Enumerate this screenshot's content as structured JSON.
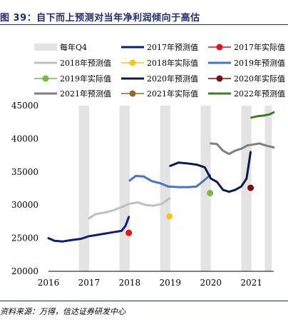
{
  "header": {
    "title": "图 39：自下而上预测对当年净利润倾向于高估"
  },
  "footer": {
    "source": "资料来源：万得，信达证券研发中心"
  },
  "chart_data": {
    "type": "line",
    "ylim": [
      20000,
      45000
    ],
    "yticks": [
      20000,
      25000,
      30000,
      35000,
      40000,
      45000
    ],
    "xlim": [
      2016,
      2021.55
    ],
    "xticks": [
      2016,
      2017,
      2018,
      2019,
      2020,
      2021
    ],
    "q4_bands": [
      {
        "from": 2016.75,
        "to": 2017.0
      },
      {
        "from": 2017.75,
        "to": 2018.0
      },
      {
        "from": 2018.75,
        "to": 2019.0
      },
      {
        "from": 2019.75,
        "to": 2020.0
      },
      {
        "from": 2020.75,
        "to": 2021.0
      },
      {
        "from": 2021.33,
        "to": 2021.5
      }
    ],
    "legend": [
      {
        "label": "每年Q4",
        "kind": "band",
        "color": "#e3e3e3"
      },
      {
        "label": "2017年预测值",
        "kind": "line",
        "color": "#0d1f6e"
      },
      {
        "label": "2017年实际值",
        "kind": "dot",
        "color": "#e3121b"
      },
      {
        "label": "2018年预测值",
        "kind": "line",
        "color": "#bfbfbf"
      },
      {
        "label": "2018年实际值",
        "kind": "dot",
        "color": "#f5c518"
      },
      {
        "label": "2019年预测值",
        "kind": "line",
        "color": "#4a73c8"
      },
      {
        "label": "2019年实际值",
        "kind": "dot",
        "color": "#7ab648"
      },
      {
        "label": "2020年预测值",
        "kind": "line",
        "color": "#0a1a4f"
      },
      {
        "label": "2020年实际值",
        "kind": "dot",
        "color": "#7a0c17"
      },
      {
        "label": "2021年预测值",
        "kind": "line",
        "color": "#7f7f7f"
      },
      {
        "label": "2021年实际值",
        "kind": "dot",
        "color": "#8d6e1c"
      },
      {
        "label": "2022年预测值",
        "kind": "line",
        "color": "#3f7a2f"
      }
    ],
    "series": [
      {
        "name": "2017年预测值",
        "color": "#0d1f6e",
        "points": [
          [
            2016.0,
            25000
          ],
          [
            2016.15,
            24600
          ],
          [
            2016.35,
            24500
          ],
          [
            2016.55,
            24700
          ],
          [
            2016.8,
            24900
          ],
          [
            2017.0,
            25300
          ],
          [
            2017.2,
            25500
          ],
          [
            2017.4,
            25700
          ],
          [
            2017.6,
            25900
          ],
          [
            2017.8,
            26100
          ],
          [
            2017.9,
            26900
          ],
          [
            2017.98,
            28200
          ]
        ]
      },
      {
        "name": "2018年预测值",
        "color": "#bfbfbf",
        "points": [
          [
            2017.0,
            28000
          ],
          [
            2017.15,
            28600
          ],
          [
            2017.4,
            28900
          ],
          [
            2017.6,
            29200
          ],
          [
            2017.8,
            29700
          ],
          [
            2018.0,
            30200
          ],
          [
            2018.2,
            30400
          ],
          [
            2018.4,
            30000
          ],
          [
            2018.6,
            29900
          ],
          [
            2018.8,
            30200
          ],
          [
            2018.98,
            31000
          ]
        ]
      },
      {
        "name": "2019年预测值",
        "color": "#4a73c8",
        "points": [
          [
            2018.0,
            33700
          ],
          [
            2018.15,
            34400
          ],
          [
            2018.35,
            34300
          ],
          [
            2018.55,
            33600
          ],
          [
            2018.75,
            33300
          ],
          [
            2018.95,
            32800
          ],
          [
            2019.2,
            32700
          ],
          [
            2019.45,
            32700
          ],
          [
            2019.65,
            32800
          ],
          [
            2019.85,
            33800
          ],
          [
            2019.98,
            34500
          ]
        ]
      },
      {
        "name": "2020年预测值",
        "color": "#0a1a4f",
        "points": [
          [
            2019.0,
            35900
          ],
          [
            2019.2,
            36400
          ],
          [
            2019.4,
            36300
          ],
          [
            2019.65,
            36100
          ],
          [
            2019.85,
            35700
          ],
          [
            2020.0,
            34000
          ],
          [
            2020.15,
            33500
          ],
          [
            2020.3,
            32300
          ],
          [
            2020.45,
            32000
          ],
          [
            2020.6,
            32300
          ],
          [
            2020.75,
            32800
          ],
          [
            2020.88,
            34000
          ],
          [
            2020.98,
            38000
          ]
        ]
      },
      {
        "name": "2021年预测值",
        "color": "#7f7f7f",
        "points": [
          [
            2020.0,
            39300
          ],
          [
            2020.15,
            39200
          ],
          [
            2020.3,
            38200
          ],
          [
            2020.45,
            37700
          ],
          [
            2020.6,
            38200
          ],
          [
            2020.75,
            38500
          ],
          [
            2020.9,
            39000
          ],
          [
            2021.0,
            39100
          ],
          [
            2021.2,
            39300
          ],
          [
            2021.35,
            39000
          ],
          [
            2021.55,
            38700
          ]
        ]
      },
      {
        "name": "2022年预测值",
        "color": "#3f7a2f",
        "points": [
          [
            2021.0,
            43200
          ],
          [
            2021.15,
            43400
          ],
          [
            2021.3,
            43500
          ],
          [
            2021.45,
            43700
          ],
          [
            2021.55,
            44000
          ]
        ]
      }
    ],
    "actuals": [
      {
        "name": "2017年实际值",
        "x": 2017.98,
        "y": 25800,
        "color": "#e3121b"
      },
      {
        "name": "2018年实际值",
        "x": 2018.98,
        "y": 28300,
        "color": "#f5c518"
      },
      {
        "name": "2019年实际值",
        "x": 2019.98,
        "y": 31800,
        "color": "#7ab648"
      },
      {
        "name": "2020年实际值",
        "x": 2020.98,
        "y": 32600,
        "color": "#7a0c17"
      }
    ]
  }
}
